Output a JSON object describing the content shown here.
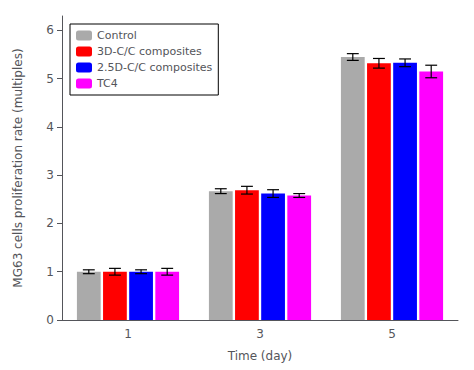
{
  "chart_data": {
    "type": "bar",
    "xlabel": "Time (day)",
    "ylabel": "MG63 cells proliferation rate (multiples)",
    "categories": [
      "1",
      "3",
      "5"
    ],
    "series": [
      {
        "name": "Control",
        "color": "#aaaaaa",
        "values": [
          1.0,
          2.67,
          5.45
        ],
        "errors": [
          0.04,
          0.05,
          0.07
        ]
      },
      {
        "name": "3D-C/C composites",
        "color": "#ff0000",
        "values": [
          1.0,
          2.69,
          5.32
        ],
        "errors": [
          0.07,
          0.08,
          0.1
        ]
      },
      {
        "name": "2.5D-C/C composites",
        "color": "#0000ff",
        "values": [
          1.0,
          2.62,
          5.33
        ],
        "errors": [
          0.04,
          0.08,
          0.08
        ]
      },
      {
        "name": "TC4",
        "color": "#ff00ff",
        "values": [
          1.0,
          2.58,
          5.15
        ],
        "errors": [
          0.07,
          0.04,
          0.13
        ]
      }
    ],
    "ylim": [
      0,
      6.3
    ],
    "yticks": [
      0,
      1,
      2,
      3,
      4,
      5,
      6
    ],
    "grid": false,
    "legend": "upper left"
  }
}
